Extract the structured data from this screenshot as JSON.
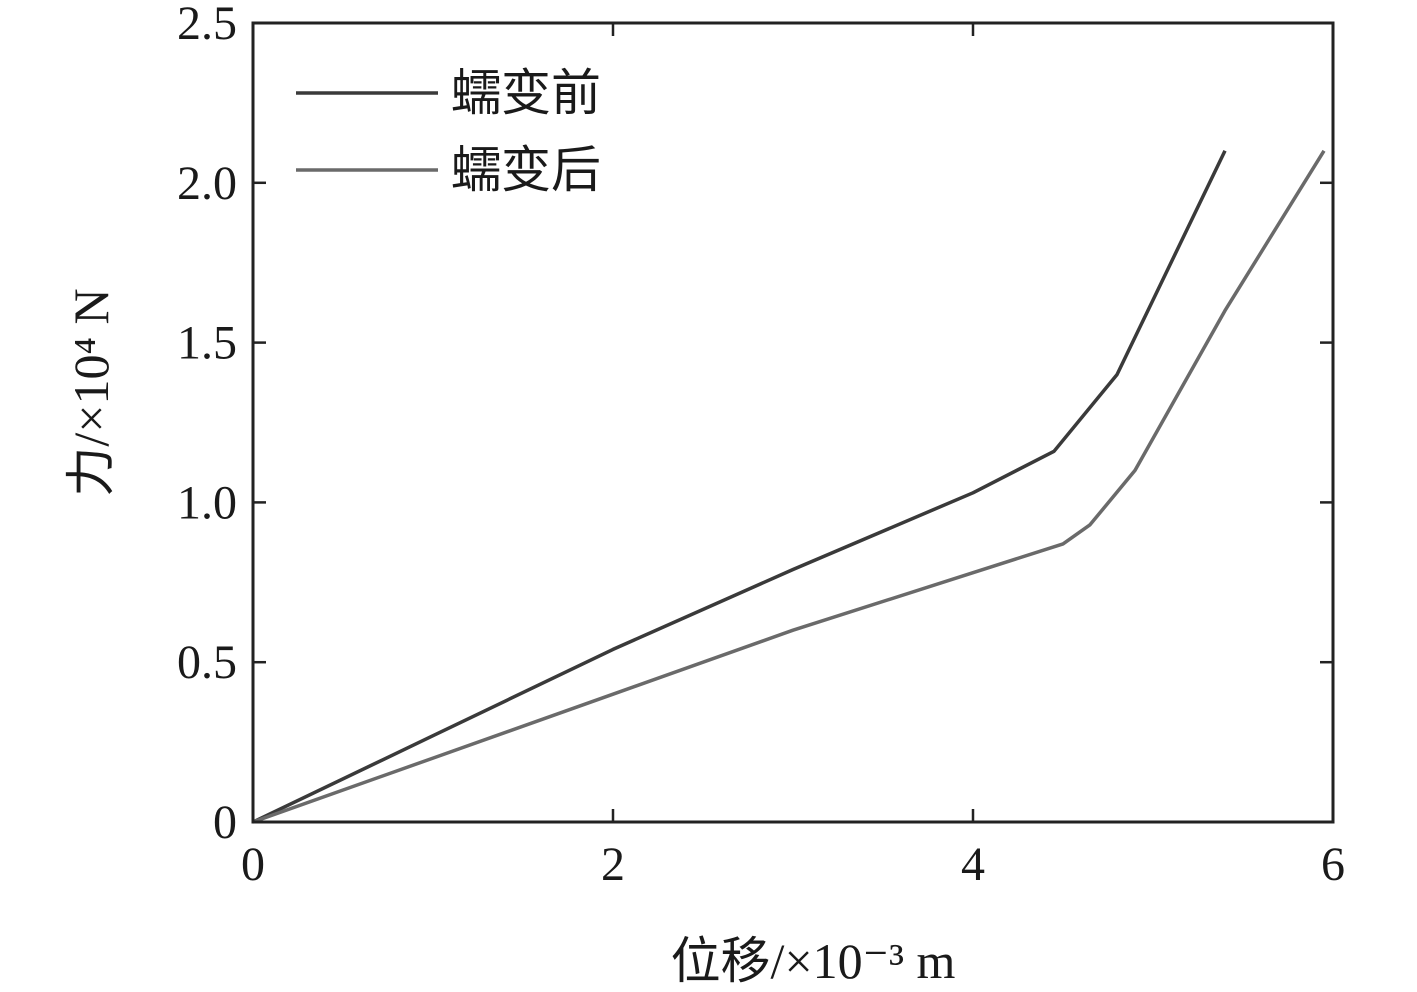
{
  "chart_data": {
    "type": "line",
    "title": "",
    "xlabel": "位移/×10⁻³ m",
    "ylabel": "力/×10⁴ N",
    "xlim": [
      0,
      6
    ],
    "ylim": [
      0,
      2.5
    ],
    "xticks": [
      0,
      2,
      4,
      6
    ],
    "xtick_labels": [
      "0",
      "2",
      "4",
      "6"
    ],
    "yticks": [
      0,
      0.5,
      1.0,
      1.5,
      2.0,
      2.5
    ],
    "ytick_labels": [
      "0",
      "0.5",
      "1.0",
      "1.5",
      "2.0",
      "2.5"
    ],
    "grid": false,
    "legend_position": "top-left",
    "series": [
      {
        "name": "蠕变前",
        "color": "#3a3a3a",
        "x": [
          0,
          1,
          2,
          3,
          4,
          4.45,
          4.8,
          5.4
        ],
        "y": [
          0,
          0.27,
          0.54,
          0.79,
          1.03,
          1.16,
          1.4,
          2.1
        ]
      },
      {
        "name": "蠕变后",
        "color": "#6a6a6a",
        "x": [
          0,
          1,
          2,
          3,
          4,
          4.5,
          4.65,
          4.9,
          5.4,
          5.95
        ],
        "y": [
          0,
          0.2,
          0.4,
          0.6,
          0.78,
          0.87,
          0.93,
          1.1,
          1.6,
          2.1
        ]
      }
    ]
  }
}
